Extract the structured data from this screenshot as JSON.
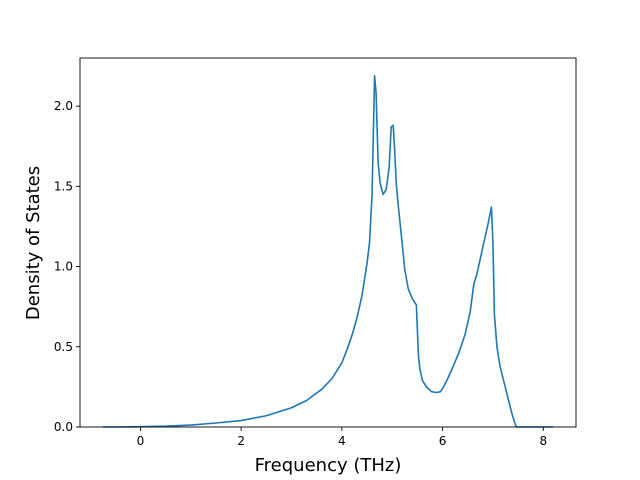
{
  "chart_data": {
    "type": "line",
    "title": "",
    "xlabel": "Frequency (THz)",
    "ylabel": "Density of States",
    "xlim": [
      -1.2,
      8.65
    ],
    "ylim": [
      0.0,
      2.3
    ],
    "xticks": [
      0,
      2,
      4,
      6,
      8
    ],
    "xtick_labels": [
      "0",
      "2",
      "4",
      "6",
      "8"
    ],
    "yticks": [
      0.0,
      0.5,
      1.0,
      1.5,
      2.0
    ],
    "ytick_labels": [
      "0.0",
      "0.5",
      "1.0",
      "1.5",
      "2.0"
    ],
    "grid": false,
    "legend": "none",
    "series": [
      {
        "color": "#1f77b4",
        "x": [
          -0.75,
          -0.4,
          0.0,
          0.5,
          1.0,
          1.5,
          2.0,
          2.5,
          3.0,
          3.3,
          3.6,
          3.8,
          4.0,
          4.1,
          4.2,
          4.3,
          4.4,
          4.5,
          4.55,
          4.6,
          4.62,
          4.65,
          4.68,
          4.72,
          4.76,
          4.82,
          4.88,
          4.94,
          4.98,
          5.02,
          5.05,
          5.08,
          5.12,
          5.18,
          5.25,
          5.32,
          5.4,
          5.48,
          5.52,
          5.55,
          5.6,
          5.68,
          5.78,
          5.88,
          5.96,
          6.02,
          6.1,
          6.2,
          6.32,
          6.45,
          6.55,
          6.62,
          6.68,
          6.75,
          6.82,
          6.9,
          6.97,
          7.0,
          7.03,
          7.08,
          7.14,
          7.22,
          7.3,
          7.38,
          7.44,
          7.47,
          7.6,
          7.8,
          8.0,
          8.2
        ],
        "y": [
          0.0,
          0.0,
          0.002,
          0.005,
          0.012,
          0.025,
          0.04,
          0.07,
          0.12,
          0.165,
          0.235,
          0.3,
          0.4,
          0.48,
          0.57,
          0.68,
          0.82,
          1.02,
          1.15,
          1.45,
          1.75,
          2.19,
          2.08,
          1.65,
          1.52,
          1.45,
          1.48,
          1.62,
          1.87,
          1.88,
          1.72,
          1.52,
          1.38,
          1.2,
          0.98,
          0.86,
          0.8,
          0.76,
          0.45,
          0.36,
          0.29,
          0.25,
          0.22,
          0.215,
          0.22,
          0.25,
          0.3,
          0.37,
          0.46,
          0.58,
          0.72,
          0.89,
          0.95,
          1.05,
          1.15,
          1.26,
          1.37,
          1.15,
          0.7,
          0.5,
          0.38,
          0.28,
          0.18,
          0.08,
          0.02,
          0.0,
          0.0,
          0.0,
          0.0,
          0.0
        ]
      }
    ]
  }
}
